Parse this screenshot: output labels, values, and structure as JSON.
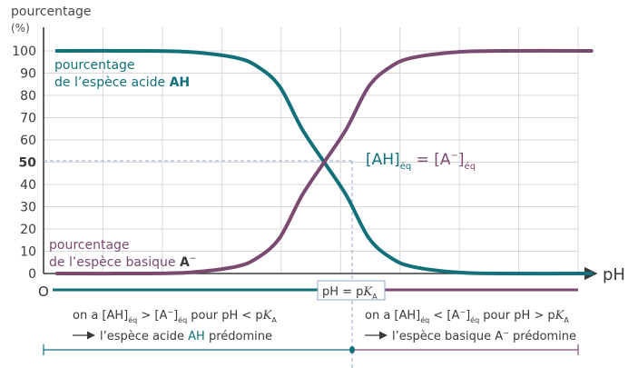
{
  "chart_data": {
    "type": "line",
    "ylabel_line1": "pourcentage",
    "ylabel_line2": "(%)",
    "xlabel": "pH",
    "origin_label": "O",
    "ylim": [
      0,
      100
    ],
    "y_ticks": [
      "0",
      "10",
      "20",
      "30",
      "40",
      "50",
      "60",
      "70",
      "80",
      "90",
      "100"
    ],
    "pka_x": 0,
    "x_range": [
      -6,
      6
    ],
    "series": [
      {
        "id": "acid",
        "color": "#11707a",
        "values_note": "",
        "x": [
          -6,
          -4,
          -3,
          -2,
          -1.5,
          -1,
          -0.5,
          0,
          0.5,
          1,
          1.5,
          2,
          3,
          4,
          6
        ],
        "y": [
          100,
          100,
          99.5,
          97,
          93,
          84,
          65,
          50,
          35,
          16,
          7,
          3,
          0.5,
          0,
          0
        ]
      },
      {
        "id": "base",
        "color": "#7b4a72",
        "x": [
          -6,
          -4,
          -3,
          -2,
          -1.5,
          -1,
          -0.5,
          0,
          0.5,
          1,
          1.5,
          2,
          3,
          4,
          6
        ],
        "y": [
          0,
          0,
          0.5,
          3,
          7,
          16,
          35,
          50,
          65,
          84,
          93,
          97,
          99.5,
          100,
          100
        ]
      }
    ]
  },
  "labels": {
    "acid_line1": "pourcentage",
    "acid_line2_prefix": "de l’espèce acide ",
    "acid_line2_bold": "AH",
    "base_line1": "pourcentage",
    "base_line2_prefix": "de l’espèce basique ",
    "base_line2_bold": "A",
    "base_line2_sup": "−",
    "eq_left": "[AH]",
    "eq_left_sub": "éq",
    "eq_mid": " = [A",
    "eq_mid_sup": "−",
    "eq_right": "]",
    "eq_right_sub": "éq",
    "pka_box_text": "pH = p",
    "pka_box_K": "K",
    "pka_box_sub": "A"
  },
  "bottom": {
    "left_line1_a": "on a [AH]",
    "left_line1_sub1": "éq",
    "left_line1_b": " > [A",
    "left_line1_sup": "−",
    "left_line1_c": "]",
    "left_line1_sub2": "éq",
    "left_line1_d": " pour pH < p",
    "left_line1_K": "K",
    "left_line1_subA": "A",
    "left_line2_a": "l’espèce acide ",
    "left_line2_b": "AH",
    "left_line2_c": " prédomine",
    "right_line1_a": "on a [AH]",
    "right_line1_sub1": "éq",
    "right_line1_b": " < [A",
    "right_line1_sup": "−",
    "right_line1_c": "]",
    "right_line1_sub2": "éq",
    "right_line1_d": " pour pH > p",
    "right_line1_K": "K",
    "right_line1_subA": "A",
    "right_line2_a": "l’espèce basique A",
    "right_line2_sup": "−",
    "right_line2_b": " prédomine"
  },
  "colors": {
    "acid": "#11707a",
    "base": "#7b4a72",
    "grid": "#d6d6d6",
    "axis": "#3a3a3a"
  }
}
